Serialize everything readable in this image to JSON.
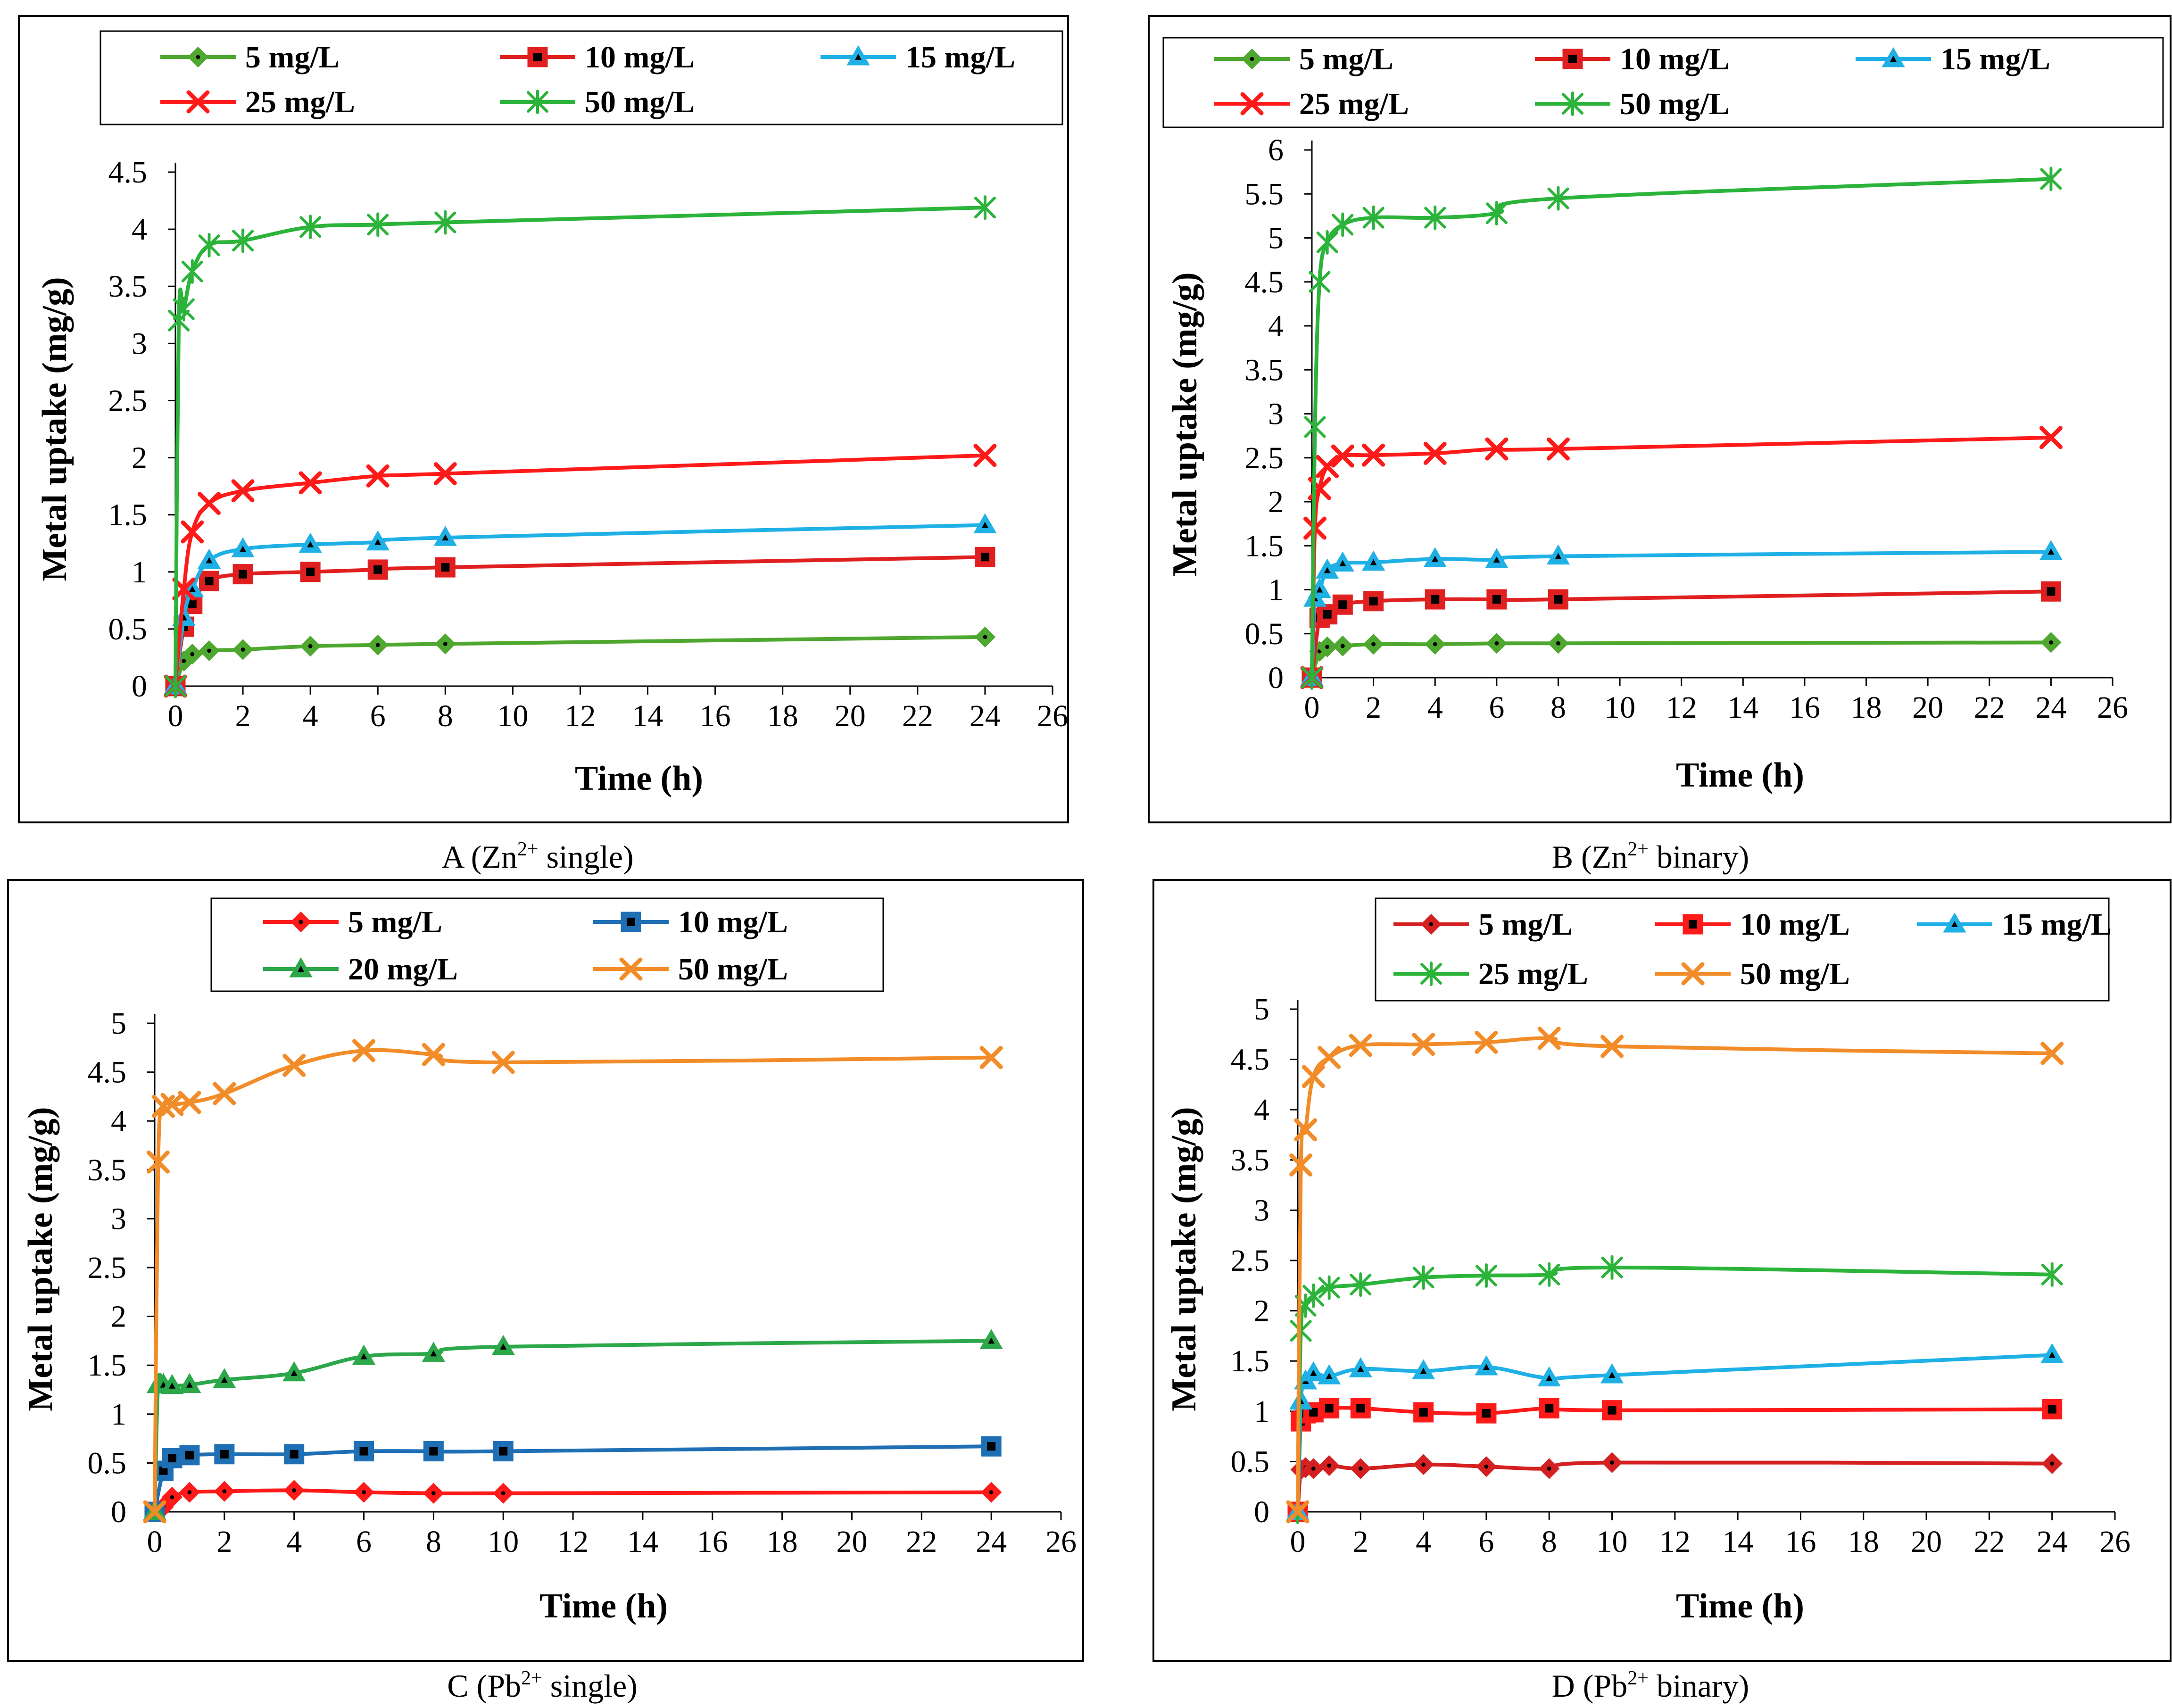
{
  "chart_data": [
    {
      "id": "A",
      "type": "line",
      "caption": {
        "prefix": "A (Zn",
        "sup": "2+",
        "suffix": " single)"
      },
      "xlabel": "Time (h)",
      "ylabel": "Metal uptake (mg/g)",
      "xlim": [
        0,
        26
      ],
      "xticks": [
        0,
        2,
        4,
        6,
        8,
        10,
        12,
        14,
        16,
        18,
        20,
        22,
        24,
        26
      ],
      "ylim": [
        0,
        4.5
      ],
      "yticks": [
        0,
        0.5,
        1,
        1.5,
        2,
        2.5,
        3,
        3.5,
        4,
        4.5
      ],
      "yticklabels": [
        "0",
        "0.5",
        "1",
        "1.5",
        "2",
        "2.5",
        "3",
        "3.5",
        "4",
        "4.5"
      ],
      "legend_columns": 3,
      "series": [
        {
          "name": "5 mg/L",
          "color": "#4ea72e",
          "marker": "diamond",
          "x": [
            0,
            0.25,
            0.5,
            1,
            2,
            4,
            6,
            8,
            24
          ],
          "y": [
            0,
            0.22,
            0.28,
            0.31,
            0.32,
            0.35,
            0.36,
            0.37,
            0.43
          ]
        },
        {
          "name": "10 mg/L",
          "color": "#e02020",
          "marker": "square",
          "x": [
            0,
            0.25,
            0.5,
            1,
            2,
            4,
            6,
            8,
            24
          ],
          "y": [
            0,
            0.52,
            0.72,
            0.92,
            0.98,
            1.0,
            1.02,
            1.04,
            1.13
          ]
        },
        {
          "name": "15 mg/L",
          "color": "#1fb0e6",
          "marker": "triangle",
          "x": [
            0,
            0.25,
            0.5,
            1,
            2,
            4,
            6,
            8,
            24
          ],
          "y": [
            0,
            0.6,
            0.85,
            1.1,
            1.2,
            1.24,
            1.26,
            1.3,
            1.41
          ]
        },
        {
          "name": "25 mg/L",
          "color": "#ff1a1a",
          "marker": "x",
          "x": [
            0,
            0.25,
            0.5,
            1,
            2,
            4,
            6,
            8,
            24
          ],
          "y": [
            0,
            0.85,
            1.35,
            1.6,
            1.71,
            1.78,
            1.84,
            1.86,
            2.02
          ]
        },
        {
          "name": "50 mg/L",
          "color": "#2bb33a",
          "marker": "star",
          "x": [
            0,
            0.1,
            0.25,
            0.5,
            1,
            2,
            4,
            6,
            8,
            24
          ],
          "y": [
            0,
            3.2,
            3.3,
            3.63,
            3.86,
            3.9,
            4.02,
            4.04,
            4.06,
            4.19
          ]
        }
      ]
    },
    {
      "id": "B",
      "type": "line",
      "caption": {
        "prefix": "B (Zn",
        "sup": "2+",
        "suffix": " binary)"
      },
      "xlabel": "Time (h)",
      "ylabel": "Metal uptake (mg/g)",
      "xlim": [
        0,
        26
      ],
      "xticks": [
        0,
        2,
        4,
        6,
        8,
        10,
        12,
        14,
        16,
        18,
        20,
        22,
        24,
        26
      ],
      "ylim": [
        0,
        6
      ],
      "yticks": [
        0,
        0.5,
        1,
        1.5,
        2,
        2.5,
        3,
        3.5,
        4,
        4.5,
        5,
        5.5,
        6
      ],
      "yticklabels": [
        "0",
        "0.5",
        "1",
        "1.5",
        "2",
        "2.5",
        "3",
        "3.5",
        "4",
        "4.5",
        "5",
        "5.5",
        "6"
      ],
      "legend_columns": 3,
      "series": [
        {
          "name": "5 mg/L",
          "color": "#4ea72e",
          "marker": "diamond",
          "x": [
            0,
            0.25,
            0.5,
            1,
            2,
            4,
            6,
            8,
            24
          ],
          "y": [
            0,
            0.3,
            0.35,
            0.36,
            0.38,
            0.38,
            0.39,
            0.39,
            0.4
          ]
        },
        {
          "name": "10 mg/L",
          "color": "#e02020",
          "marker": "square",
          "x": [
            0,
            0.25,
            0.5,
            1,
            2,
            4,
            6,
            8,
            24
          ],
          "y": [
            0,
            0.68,
            0.72,
            0.83,
            0.87,
            0.89,
            0.89,
            0.89,
            0.98
          ]
        },
        {
          "name": "15 mg/L",
          "color": "#1fb0e6",
          "marker": "triangle",
          "x": [
            0,
            0.1,
            0.25,
            0.5,
            1,
            2,
            4,
            6,
            8,
            24
          ],
          "y": [
            0,
            0.9,
            1.0,
            1.22,
            1.3,
            1.31,
            1.35,
            1.34,
            1.38,
            1.43
          ]
        },
        {
          "name": "25 mg/L",
          "color": "#ff1a1a",
          "marker": "x",
          "x": [
            0,
            0.1,
            0.25,
            0.5,
            1,
            2,
            4,
            6,
            8,
            24
          ],
          "y": [
            0,
            1.7,
            2.15,
            2.4,
            2.52,
            2.53,
            2.55,
            2.6,
            2.6,
            2.73
          ]
        },
        {
          "name": "50 mg/L",
          "color": "#2bb33a",
          "marker": "star",
          "x": [
            0,
            0.1,
            0.25,
            0.5,
            1,
            2,
            4,
            6,
            8,
            24
          ],
          "y": [
            0,
            2.85,
            4.5,
            4.95,
            5.15,
            5.23,
            5.23,
            5.28,
            5.45,
            5.67
          ]
        }
      ]
    },
    {
      "id": "C",
      "type": "line",
      "caption": {
        "prefix": "C (Pb",
        "sup": "2+",
        "suffix": " single)"
      },
      "xlabel": "Time (h)",
      "ylabel": "Metal uptake (mg/g)",
      "xlim": [
        0,
        26
      ],
      "xticks": [
        0,
        2,
        4,
        6,
        8,
        10,
        12,
        14,
        16,
        18,
        20,
        22,
        24,
        26
      ],
      "ylim": [
        0,
        5
      ],
      "yticks": [
        0,
        0.5,
        1,
        1.5,
        2,
        2.5,
        3,
        3.5,
        4,
        4.5,
        5
      ],
      "yticklabels": [
        "0",
        "0.5",
        "1",
        "1.5",
        "2",
        "2.5",
        "3",
        "3.5",
        "4",
        "4.5",
        "5"
      ],
      "legend_columns": 2,
      "series": [
        {
          "name": "5 mg/L",
          "color": "#ff1a1a",
          "marker": "diamond",
          "x": [
            0,
            0.25,
            0.5,
            1,
            2,
            4,
            6,
            8,
            10,
            24
          ],
          "y": [
            0,
            0.05,
            0.15,
            0.2,
            0.21,
            0.22,
            0.2,
            0.19,
            0.19,
            0.2
          ]
        },
        {
          "name": "10 mg/L",
          "color": "#1f6fb5",
          "marker": "square",
          "x": [
            0,
            0.25,
            0.5,
            1,
            2,
            4,
            6,
            8,
            10,
            24
          ],
          "y": [
            0,
            0.42,
            0.55,
            0.58,
            0.59,
            0.59,
            0.62,
            0.62,
            0.62,
            0.67
          ]
        },
        {
          "name": "20 mg/L",
          "color": "#2ca84a",
          "marker": "triangle",
          "x": [
            0,
            0.1,
            0.25,
            0.5,
            1,
            2,
            4,
            6,
            8,
            10,
            24
          ],
          "y": [
            0,
            1.3,
            1.3,
            1.29,
            1.3,
            1.35,
            1.42,
            1.59,
            1.62,
            1.69,
            1.75
          ]
        },
        {
          "name": "50 mg/L",
          "color": "#f28c28",
          "marker": "x",
          "x": [
            0,
            0.1,
            0.25,
            0.5,
            1,
            2,
            4,
            6,
            8,
            10,
            24
          ],
          "y": [
            0,
            3.58,
            4.15,
            4.17,
            4.19,
            4.28,
            4.57,
            4.72,
            4.68,
            4.6,
            4.65
          ]
        }
      ]
    },
    {
      "id": "D",
      "type": "line",
      "caption": {
        "prefix": "D (Pb",
        "sup": "2+",
        "suffix": " binary)"
      },
      "xlabel": "Time (h)",
      "ylabel": "Metal uptake (mg/g)",
      "xlim": [
        0,
        26
      ],
      "xticks": [
        0,
        2,
        4,
        6,
        8,
        10,
        12,
        14,
        16,
        18,
        20,
        22,
        24,
        26
      ],
      "ylim": [
        0,
        5
      ],
      "yticks": [
        0,
        0.5,
        1,
        1.5,
        2,
        2.5,
        3,
        3.5,
        4,
        4.5,
        5
      ],
      "yticklabels": [
        "0",
        "0.5",
        "1",
        "1.5",
        "2",
        "2.5",
        "3",
        "3.5",
        "4",
        "4.5",
        "5"
      ],
      "legend_columns": 3,
      "series": [
        {
          "name": "5 mg/L",
          "color": "#d42020",
          "marker": "diamond",
          "x": [
            0,
            0.1,
            0.25,
            0.5,
            1,
            2,
            4,
            6,
            8,
            10,
            24
          ],
          "y": [
            0,
            0.42,
            0.44,
            0.43,
            0.46,
            0.43,
            0.47,
            0.45,
            0.43,
            0.49,
            0.48
          ]
        },
        {
          "name": "10 mg/L",
          "color": "#ff1a1a",
          "marker": "square",
          "x": [
            0,
            0.1,
            0.25,
            0.5,
            1,
            2,
            4,
            6,
            8,
            10,
            24
          ],
          "y": [
            0,
            0.9,
            0.98,
            0.99,
            1.03,
            1.03,
            0.99,
            0.98,
            1.03,
            1.01,
            1.02
          ]
        },
        {
          "name": "15 mg/L",
          "color": "#1fb0e6",
          "marker": "triangle",
          "x": [
            0,
            0.1,
            0.25,
            0.5,
            1,
            2,
            4,
            6,
            8,
            10,
            24
          ],
          "y": [
            0,
            1.1,
            1.3,
            1.38,
            1.35,
            1.42,
            1.4,
            1.44,
            1.33,
            1.36,
            1.56
          ]
        },
        {
          "name": "25 mg/L",
          "color": "#2bb33a",
          "marker": "star",
          "x": [
            0,
            0.1,
            0.25,
            0.5,
            1,
            2,
            4,
            6,
            8,
            10,
            24
          ],
          "y": [
            0,
            1.8,
            2.05,
            2.15,
            2.23,
            2.26,
            2.33,
            2.35,
            2.36,
            2.43,
            2.36
          ]
        },
        {
          "name": "50 mg/L",
          "color": "#f28c28",
          "marker": "x",
          "x": [
            0,
            0.1,
            0.25,
            0.5,
            1,
            2,
            4,
            6,
            8,
            10,
            24
          ],
          "y": [
            0,
            3.45,
            3.8,
            4.33,
            4.52,
            4.64,
            4.65,
            4.67,
            4.71,
            4.63,
            4.56
          ]
        }
      ]
    }
  ]
}
